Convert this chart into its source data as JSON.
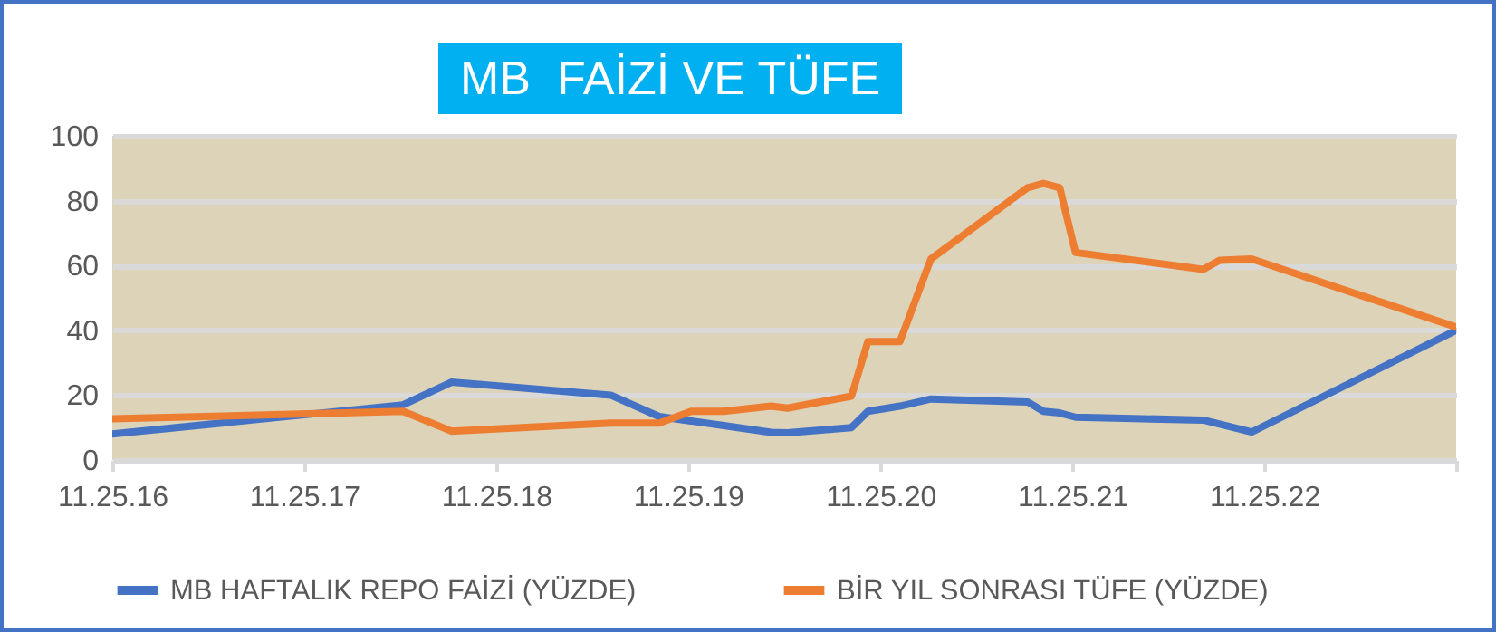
{
  "chart_data": {
    "type": "line",
    "title": "MB  FAİZİ VE TÜFE",
    "xlim": [
      "2016-11-25",
      "2023-11-25"
    ],
    "xticks": [
      {
        "value": "2016-11-25",
        "label": "11.25.16"
      },
      {
        "value": "2017-11-25",
        "label": "11.25.17"
      },
      {
        "value": "2018-11-25",
        "label": "11.25.18"
      },
      {
        "value": "2019-11-25",
        "label": "11.25.19"
      },
      {
        "value": "2020-11-25",
        "label": "11.25.20"
      },
      {
        "value": "2021-11-25",
        "label": "11.25.21"
      },
      {
        "value": "2022-11-25",
        "label": "11.25.22"
      },
      {
        "value": "2023-11-25",
        "label": null
      }
    ],
    "ylim": [
      0,
      100
    ],
    "yticks": [
      0,
      20,
      40,
      60,
      80,
      100
    ],
    "grid": "y",
    "legend": "bottom",
    "series": [
      {
        "name": "MB HAFTALIK REPO FAİZİ (YÜZDE)",
        "color": "#4472c4",
        "x": [
          "2016-11-25",
          "2018-06",
          "2018-09",
          "2019-07",
          "2019-10",
          "2020-02",
          "2020-05",
          "2020-06",
          "2020-10",
          "2020-11",
          "2021-01",
          "2021-03",
          "2021-09",
          "2021-10",
          "2021-11",
          "2021-12",
          "2022-08",
          "2022-11",
          "2023-11-25"
        ],
        "values": [
          8,
          17,
          24,
          20,
          13.4,
          10.6,
          8.5,
          8.4,
          10,
          15,
          16.6,
          18.8,
          17.9,
          15,
          14.5,
          13.2,
          12.3,
          8.6,
          40
        ]
      },
      {
        "name": "BİR YIL SONRASI TÜFE (YÜZDE)",
        "color": "#ed7d31",
        "x": [
          "2016-11-25",
          "2018-06",
          "2018-09",
          "2019-07",
          "2019-10",
          "2019-12",
          "2020-02",
          "2020-05",
          "2020-06",
          "2020-10",
          "2020-11",
          "2021-01",
          "2021-03",
          "2021-09",
          "2021-10",
          "2021-11",
          "2021-12",
          "2022-08",
          "2022-09",
          "2022-11",
          "2023-11-25"
        ],
        "values": [
          12.7,
          15,
          8.9,
          11.4,
          11.4,
          15,
          15,
          16.6,
          16,
          19.7,
          36.5,
          36.5,
          62,
          84,
          85.3,
          84,
          64,
          58.8,
          61.6,
          62,
          41
        ]
      }
    ]
  }
}
